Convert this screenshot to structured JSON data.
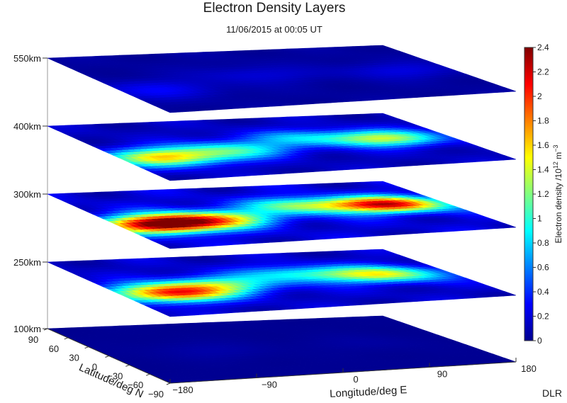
{
  "chart_data": {
    "type": "heatmap",
    "title": "Electron Density Layers",
    "subtitle": "11/06/2015 at 00:05 UT",
    "xlabel": "Longitude/deg E",
    "ylabel": "Latitude/deg N",
    "colorbar_label": "Electron density /10",
    "colorbar_label_exp": "12",
    "colorbar_label_unit": " m",
    "colorbar_label_unit_exp": "−3",
    "colorbar_range": [
      0,
      2.4
    ],
    "colorbar_ticks": [
      "0",
      "0.2",
      "0.4",
      "0.6",
      "0.8",
      "1",
      "1.2",
      "1.4",
      "1.6",
      "1.8",
      "2",
      "2.2",
      "2.4"
    ],
    "x_ticks": [
      "−180",
      "−90",
      "0",
      "90",
      "180"
    ],
    "y_ticks": [
      "90",
      "60",
      "30",
      "0",
      "−30",
      "−60",
      "−90"
    ],
    "layers": [
      {
        "label": "550km",
        "peak": 0.45
      },
      {
        "label": "400km",
        "peak": 1.5
      },
      {
        "label": "300km",
        "peak": 2.25
      },
      {
        "label": "250km",
        "peak": 1.8
      },
      {
        "label": "100km",
        "peak": 0.1
      }
    ]
  },
  "credit": "DLR"
}
